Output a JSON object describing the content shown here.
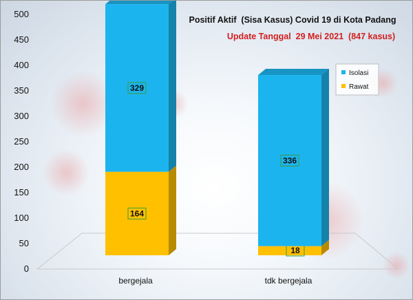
{
  "chart_data": {
    "type": "bar",
    "stacked": true,
    "title": "Positif Aktif  (Sisa Kasus) Covid 19 di Kota Padang",
    "subtitle": "Update Tanggal  29 Mei 2021  (847 kasus)",
    "categories": [
      "bergejala",
      "tdk bergejala"
    ],
    "series": [
      {
        "name": "Rawat",
        "values": [
          164,
          18
        ],
        "color": "#ffc000"
      },
      {
        "name": "Isolasi",
        "values": [
          329,
          336
        ],
        "color": "#1cb4ee"
      }
    ],
    "legend_order": [
      "Isolasi",
      "Rawat"
    ],
    "ylim": [
      0,
      500
    ],
    "yticks": [
      0,
      50,
      100,
      150,
      200,
      250,
      300,
      350,
      400,
      450,
      500
    ],
    "grid": false,
    "legend_position": "right"
  }
}
